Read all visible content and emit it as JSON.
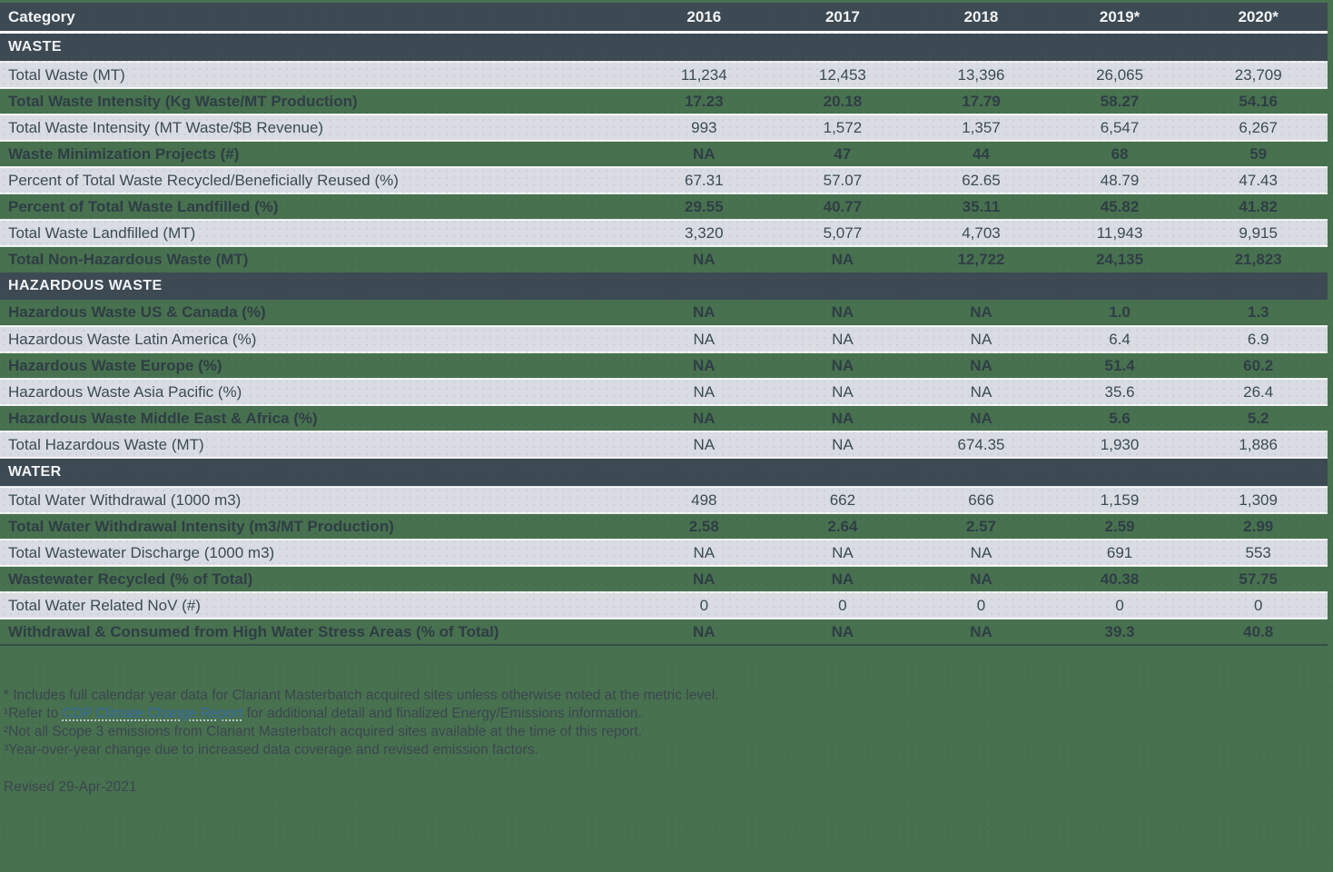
{
  "colors": {
    "page_bg": "#48714F",
    "header_bg": "#3D4A53",
    "header_text": "#F2F4F6",
    "row_light_bg": "#D9DDE3",
    "row_text": "#3D4A54",
    "row_text_bold": "#2F3E46",
    "separator": "#FFFFFF",
    "link": "#366CA6",
    "footnote_text": "#3B4750"
  },
  "chart_data": {
    "type": "table",
    "columns": [
      "Category",
      "2016",
      "2017",
      "2018",
      "2019*",
      "2020*"
    ],
    "sections": [
      {
        "title": "WASTE",
        "row_shade_start": "light",
        "rows": [
          {
            "label": "Total Waste (MT)",
            "values": [
              "11,234",
              "12,453",
              "13,396",
              "26,065",
              "23,709"
            ]
          },
          {
            "label": "Total Waste Intensity (Kg Waste/MT Production)",
            "values": [
              "17.23",
              "20.18",
              "17.79",
              "58.27",
              "54.16"
            ]
          },
          {
            "label": "Total Waste Intensity (MT Waste/$B Revenue)",
            "values": [
              "993",
              "1,572",
              "1,357",
              "6,547",
              "6,267"
            ]
          },
          {
            "label": "Waste Minimization Projects (#)",
            "values": [
              "NA",
              "47",
              "44",
              "68",
              "59"
            ]
          },
          {
            "label": "Percent of Total Waste Recycled/Beneficially Reused (%)",
            "values": [
              "67.31",
              "57.07",
              "62.65",
              "48.79",
              "47.43"
            ]
          },
          {
            "label": "Percent of Total Waste Landfilled (%)",
            "values": [
              "29.55",
              "40.77",
              "35.11",
              "45.82",
              "41.82"
            ]
          },
          {
            "label": "Total Waste Landfilled (MT)",
            "values": [
              "3,320",
              "5,077",
              "4,703",
              "11,943",
              "9,915"
            ]
          },
          {
            "label": "Total Non-Hazardous Waste (MT)",
            "values": [
              "NA",
              "NA",
              "12,722",
              "24,135",
              "21,823"
            ]
          }
        ]
      },
      {
        "title": "HAZARDOUS WASTE",
        "row_shade_start": "green",
        "rows": [
          {
            "label": "Hazardous Waste US & Canada (%)",
            "values": [
              "NA",
              "NA",
              "NA",
              "1.0",
              "1.3"
            ]
          },
          {
            "label": "Hazardous Waste Latin America (%)",
            "values": [
              "NA",
              "NA",
              "NA",
              "6.4",
              "6.9"
            ]
          },
          {
            "label": "Hazardous Waste Europe (%)",
            "values": [
              "NA",
              "NA",
              "NA",
              "51.4",
              "60.2"
            ]
          },
          {
            "label": "Hazardous Waste Asia Pacific (%)",
            "values": [
              "NA",
              "NA",
              "NA",
              "35.6",
              "26.4"
            ]
          },
          {
            "label": "Hazardous Waste Middle East & Africa (%)",
            "values": [
              "NA",
              "NA",
              "NA",
              "5.6",
              "5.2"
            ]
          },
          {
            "label": "Total Hazardous Waste (MT)",
            "values": [
              "NA",
              "NA",
              "674.35",
              "1,930",
              "1,886"
            ]
          }
        ]
      },
      {
        "title": "WATER",
        "row_shade_start": "light",
        "rows": [
          {
            "label": "Total Water Withdrawal (1000 m3)",
            "values": [
              "498",
              "662",
              "666",
              "1,159",
              "1,309"
            ]
          },
          {
            "label": "Total Water Withdrawal Intensity (m3/MT Production)",
            "values": [
              "2.58",
              "2.64",
              "2.57",
              "2.59",
              "2.99"
            ]
          },
          {
            "label": "Total Wastewater Discharge (1000 m3)",
            "values": [
              "NA",
              "NA",
              "NA",
              "691",
              "553"
            ]
          },
          {
            "label": "Wastewater Recycled (% of Total)",
            "values": [
              "NA",
              "NA",
              "NA",
              "40.38",
              "57.75"
            ]
          },
          {
            "label": "Total Water Related NoV (#)",
            "values": [
              "0",
              "0",
              "0",
              "0",
              "0"
            ]
          },
          {
            "label": "Withdrawal & Consumed from High Water Stress Areas (% of Total)",
            "values": [
              "NA",
              "NA",
              "NA",
              "39.3",
              "40.8"
            ]
          }
        ]
      }
    ]
  },
  "header": {
    "category_label": "Category"
  },
  "footnotes": {
    "line1": "* Includes full calendar year data for Clariant Masterbatch acquired sites unless otherwise noted at the metric level.",
    "line2_prefix": "¹Refer to ",
    "line2_link": "CDP Climate Change Report",
    "line2_suffix": " for additional detail and finalized Energy/Emissions information.",
    "line3": "²Not all Scope 3 emissions from Clariant Masterbatch acquired sites available at the time of this report.",
    "line4": "³Year-over-year change due to increased data coverage and revised emission factors."
  },
  "revised": "Revised 29-Apr-2021"
}
